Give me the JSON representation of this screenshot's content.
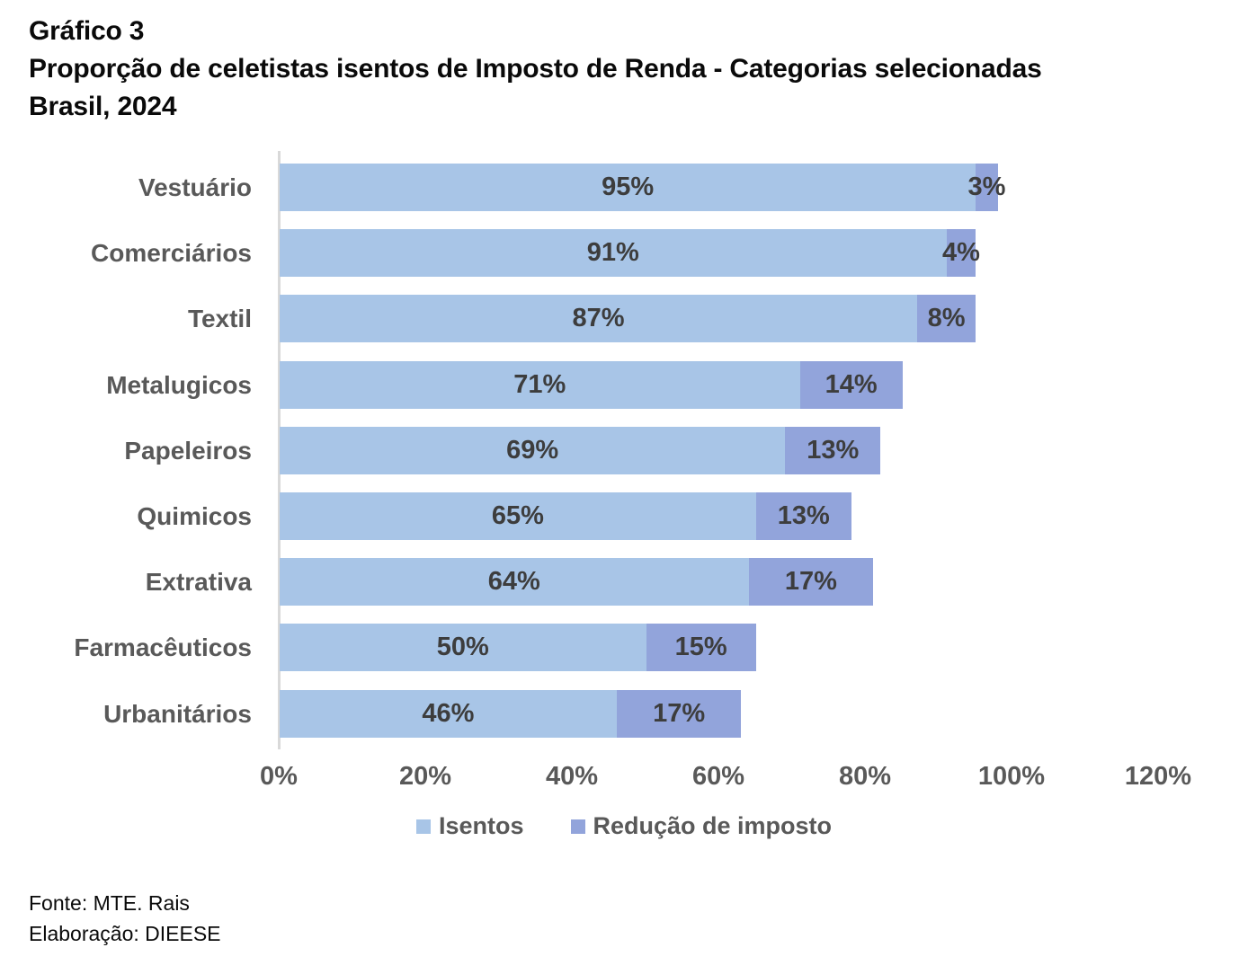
{
  "title": {
    "kicker": "Gráfico 3",
    "main": "Proporção de celetistas isentos de Imposto de Renda - Categorias selecionadas",
    "subtitle": "Brasil, 2024"
  },
  "chart_data": {
    "type": "bar",
    "orientation": "horizontal",
    "stacked": true,
    "title": "Proporção de celetistas isentos de Imposto de Renda - Categorias selecionadas, Brasil, 2024",
    "categories": [
      "Vestuário",
      "Comerciários",
      "Textil",
      "Metalugicos",
      "Papeleiros",
      "Quimicos",
      "Extrativa",
      "Farmacêuticos",
      "Urbanitários"
    ],
    "series": [
      {
        "name": "Isentos",
        "color": "#A8C5E7",
        "values": [
          95,
          91,
          87,
          71,
          69,
          65,
          64,
          50,
          46
        ]
      },
      {
        "name": "Redução de imposto",
        "color": "#92A4DB",
        "values": [
          3,
          4,
          8,
          14,
          13,
          13,
          17,
          15,
          17
        ]
      }
    ],
    "value_suffix": "%",
    "xlim": [
      0,
      120
    ],
    "x_tick_labels": [
      "0%",
      "20%",
      "40%",
      "60%",
      "80%",
      "100%",
      "120%"
    ],
    "grid": false,
    "legend_position": "bottom",
    "data_label_color": "#3D3D3D",
    "axis_line_color": "#D9D9D9"
  },
  "legend": {
    "items": [
      {
        "label": "Isentos",
        "color": "#A8C5E7"
      },
      {
        "label": "Redução de imposto",
        "color": "#92A4DB"
      }
    ]
  },
  "footer": {
    "source": "Fonte: MTE. Rais",
    "elaboration": "Elaboração: DIEESE"
  }
}
